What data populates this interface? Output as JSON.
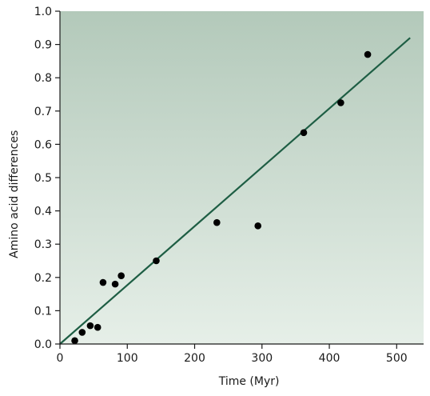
{
  "chart_data": {
    "type": "scatter",
    "title": "",
    "xlabel": "Time (Myr)",
    "ylabel": "Amino acid differences",
    "xlim": [
      0,
      540
    ],
    "ylim": [
      0,
      1.0
    ],
    "x_ticks": [
      "0",
      "100",
      "200",
      "300",
      "400",
      "500"
    ],
    "x_tick_values": [
      0,
      100,
      200,
      300,
      400,
      500
    ],
    "y_ticks": [
      "0.0",
      "0.1",
      "0.2",
      "0.3",
      "0.4",
      "0.5",
      "0.6",
      "0.7",
      "0.8",
      "0.9",
      "1.0"
    ],
    "y_tick_values": [
      0,
      0.1,
      0.2,
      0.3,
      0.4,
      0.5,
      0.6,
      0.7,
      0.8,
      0.9,
      1.0
    ],
    "grid": false,
    "points": [
      {
        "x": 22,
        "y": 0.01
      },
      {
        "x": 33,
        "y": 0.035
      },
      {
        "x": 45,
        "y": 0.055
      },
      {
        "x": 56,
        "y": 0.05
      },
      {
        "x": 64,
        "y": 0.185
      },
      {
        "x": 82,
        "y": 0.18
      },
      {
        "x": 91,
        "y": 0.205
      },
      {
        "x": 143,
        "y": 0.25
      },
      {
        "x": 233,
        "y": 0.365
      },
      {
        "x": 294,
        "y": 0.355
      },
      {
        "x": 362,
        "y": 0.635
      },
      {
        "x": 417,
        "y": 0.725
      },
      {
        "x": 457,
        "y": 0.87
      }
    ],
    "fit_line": {
      "x": [
        0,
        520
      ],
      "y": [
        0.0,
        0.92
      ]
    },
    "colors": {
      "point": "#000000",
      "fit_line": "#1e5e44",
      "background_top": "#b3c9ba",
      "background_bottom": "#e6efe8",
      "axis": "#1a1a1a"
    }
  }
}
